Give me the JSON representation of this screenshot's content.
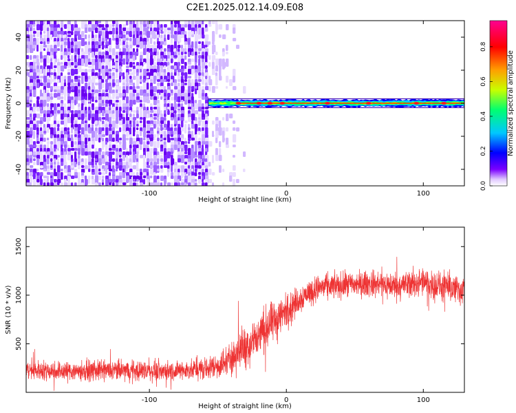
{
  "figure": {
    "title": "C2E1.2025.012.14.09.E08"
  },
  "chart_data": [
    {
      "type": "heatmap",
      "xlabel": "Height of straight line (km)",
      "ylabel": "Frequency (Hz)",
      "xlim": [
        -190,
        130
      ],
      "ylim": [
        -50,
        50
      ],
      "x_ticks": [
        -100,
        0,
        100
      ],
      "y_ticks": [
        -40,
        -20,
        0,
        20,
        40
      ],
      "grid": false,
      "colorbar": {
        "label": "Normalized spectral amplitude",
        "range": [
          0,
          0.95
        ],
        "ticks": [
          0.0,
          0.2,
          0.4,
          0.6,
          0.8
        ],
        "colormap": "rainbow",
        "colors": [
          "#ffffff",
          "#7a00ff",
          "#0000ff",
          "#00c8ff",
          "#00ff70",
          "#c8ff00",
          "#ffa000",
          "#ff0000",
          "#ff0090"
        ]
      },
      "features": {
        "noise_region_x": [
          -190,
          -57
        ],
        "fading_noise_region_x": [
          -57,
          -30
        ],
        "signal_band_x": [
          -57,
          130
        ],
        "signal_band_center_hz": 0,
        "signal_band_halfwidth_hz": 2,
        "peak_positions_x": [
          -35,
          -20,
          -12,
          -3,
          30,
          60,
          95,
          115
        ]
      }
    },
    {
      "type": "line",
      "xlabel": "Height of straight line (km)",
      "ylabel": "SNR (10 * v/v)",
      "xlim": [
        -190,
        130
      ],
      "ylim": [
        0,
        1700
      ],
      "x_ticks": [
        -100,
        0,
        100
      ],
      "y_ticks": [
        500,
        1000,
        1500
      ],
      "grid": false,
      "series": [
        {
          "color": "#ee3333",
          "trend": {
            "x": [
              -190,
              -160,
              -120,
              -80,
              -60,
              -45,
              -35,
              -25,
              -15,
              -5,
              5,
              15,
              25,
              40,
              60,
              80,
              100,
              115,
              130
            ],
            "mean": [
              230,
              220,
              225,
              220,
              240,
              300,
              420,
              520,
              650,
              780,
              900,
              1020,
              1080,
              1100,
              1120,
              1100,
              1130,
              1080,
              1050
            ],
            "amplitude": [
              150,
              150,
              160,
              150,
              160,
              220,
              300,
              360,
              330,
              300,
              230,
              200,
              200,
              200,
              200,
              220,
              230,
              230,
              230
            ]
          }
        }
      ]
    }
  ]
}
